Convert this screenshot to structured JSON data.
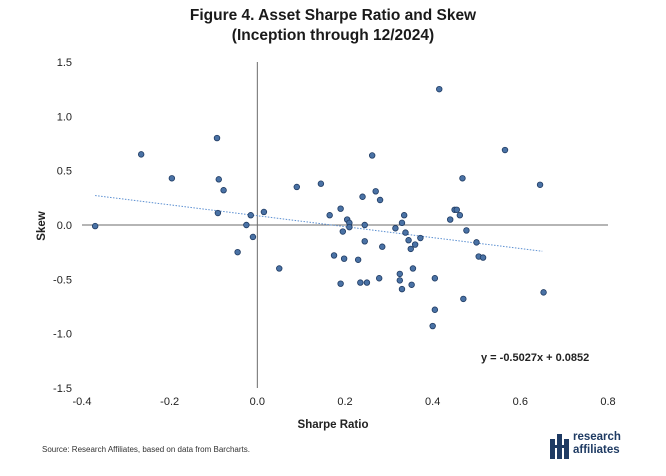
{
  "title_line1": "Figure 4. Asset Sharpe Ratio and Skew",
  "title_line2": "(Inception through 12/2024)",
  "source": "Source: Research Affiliates, based on data from Barcharts.",
  "logo": {
    "line1": "research",
    "line2": "affiliates",
    "icon": "research-affiliates-logo-icon"
  },
  "colors": {
    "point": "#4a72a5",
    "point_edge": "#1f3b63",
    "trend": "#5b8fd1",
    "axis": "#6b6b6b"
  },
  "chart_data": {
    "type": "scatter",
    "xlabel": "Sharpe Ratio",
    "ylabel": "Skew",
    "xlim": [
      -0.4,
      0.8
    ],
    "ylim": [
      -1.5,
      1.5
    ],
    "xticks": [
      "-0.4",
      "-0.2",
      "0.0",
      "0.2",
      "0.4",
      "0.6",
      "0.8"
    ],
    "yticks": [
      "1.5",
      "1.0",
      "0.5",
      "0.0",
      "-0.5",
      "-1.0",
      "-1.5"
    ],
    "xtick_values": [
      -0.4,
      -0.2,
      0.0,
      0.2,
      0.4,
      0.6,
      0.8
    ],
    "ytick_values": [
      1.5,
      1.0,
      0.5,
      0.0,
      -0.5,
      -1.0,
      -1.5
    ],
    "grid": false,
    "trendline": {
      "slope": -0.5027,
      "intercept": 0.0852,
      "x_range": [
        -0.37,
        0.65
      ],
      "style": "dotted"
    },
    "equation_label": "y = -0.5027x + 0.0852",
    "points": [
      [
        -0.37,
        -0.01
      ],
      [
        -0.265,
        0.65
      ],
      [
        -0.195,
        0.43
      ],
      [
        -0.092,
        0.8
      ],
      [
        -0.088,
        0.42
      ],
      [
        -0.09,
        0.11
      ],
      [
        -0.077,
        0.32
      ],
      [
        -0.045,
        -0.25
      ],
      [
        -0.025,
        0.0
      ],
      [
        -0.015,
        0.09
      ],
      [
        -0.01,
        -0.11
      ],
      [
        0.015,
        0.12
      ],
      [
        0.05,
        -0.4
      ],
      [
        0.09,
        0.35
      ],
      [
        0.145,
        0.38
      ],
      [
        0.165,
        0.09
      ],
      [
        0.175,
        -0.28
      ],
      [
        0.19,
        -0.54
      ],
      [
        0.19,
        0.15
      ],
      [
        0.195,
        -0.06
      ],
      [
        0.198,
        -0.31
      ],
      [
        0.205,
        0.05
      ],
      [
        0.21,
        0.02
      ],
      [
        0.21,
        -0.02
      ],
      [
        0.23,
        -0.32
      ],
      [
        0.235,
        -0.53
      ],
      [
        0.24,
        0.26
      ],
      [
        0.245,
        -0.15
      ],
      [
        0.245,
        0.0
      ],
      [
        0.25,
        -0.53
      ],
      [
        0.262,
        0.64
      ],
      [
        0.27,
        0.31
      ],
      [
        0.278,
        -0.49
      ],
      [
        0.28,
        0.23
      ],
      [
        0.285,
        -0.2
      ],
      [
        0.315,
        -0.03
      ],
      [
        0.325,
        -0.45
      ],
      [
        0.325,
        -0.51
      ],
      [
        0.33,
        0.02
      ],
      [
        0.33,
        -0.59
      ],
      [
        0.335,
        0.09
      ],
      [
        0.338,
        -0.07
      ],
      [
        0.345,
        -0.14
      ],
      [
        0.35,
        -0.22
      ],
      [
        0.352,
        -0.55
      ],
      [
        0.355,
        -0.4
      ],
      [
        0.36,
        -0.18
      ],
      [
        0.372,
        -0.12
      ],
      [
        0.4,
        -0.93
      ],
      [
        0.405,
        -0.49
      ],
      [
        0.405,
        -0.78
      ],
      [
        0.415,
        1.25
      ],
      [
        0.44,
        0.05
      ],
      [
        0.45,
        0.14
      ],
      [
        0.455,
        0.14
      ],
      [
        0.462,
        0.09
      ],
      [
        0.468,
        0.43
      ],
      [
        0.47,
        -0.68
      ],
      [
        0.477,
        -0.05
      ],
      [
        0.5,
        -0.16
      ],
      [
        0.505,
        -0.29
      ],
      [
        0.515,
        -0.3
      ],
      [
        0.565,
        0.69
      ],
      [
        0.645,
        0.37
      ],
      [
        0.653,
        -0.62
      ]
    ]
  }
}
